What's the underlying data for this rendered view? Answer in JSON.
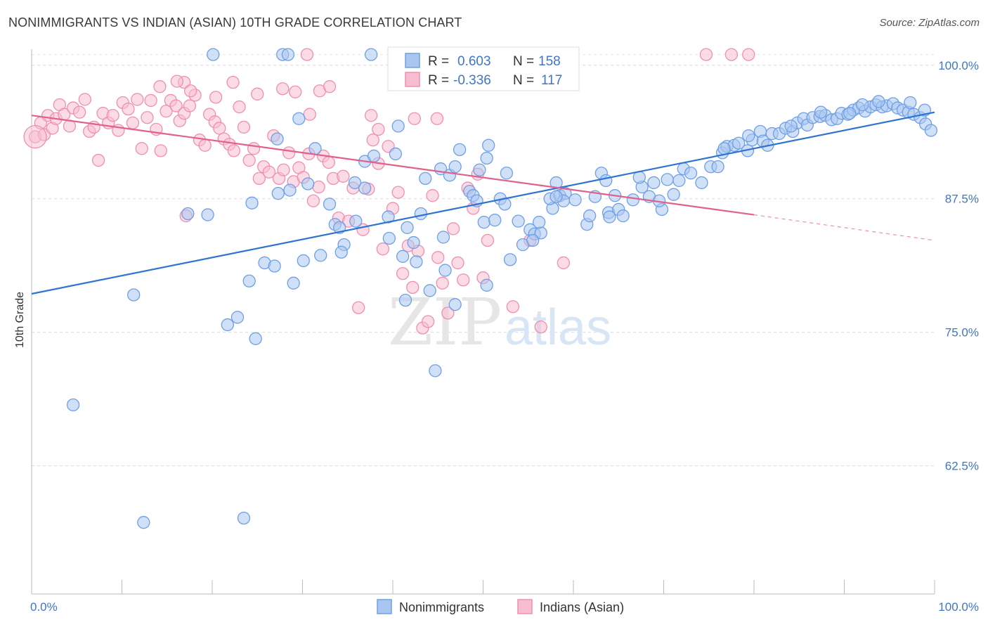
{
  "title": "NONIMMIGRANTS VS INDIAN (ASIAN) 10TH GRADE CORRELATION CHART",
  "source": "Source: ZipAtlas.com",
  "watermark": {
    "zip": "ZIP",
    "atlas": "atlas"
  },
  "chart_data": {
    "type": "scatter",
    "ylabel": "10th Grade",
    "xlim": [
      0,
      100
    ],
    "ylim": [
      50.5,
      101.5
    ],
    "x_tick_labels": [
      "0.0%",
      "100.0%"
    ],
    "y_ticks": [
      62.5,
      75.0,
      87.5,
      100.0
    ],
    "y_tick_labels": [
      "62.5%",
      "75.0%",
      "87.5%",
      "100.0%"
    ],
    "grid": true,
    "legend_position": "top-center",
    "series": [
      {
        "name": "Nonimmigrants",
        "color": "#6f9fe6",
        "fill": "#a9c6f0",
        "line_color": "#2e74d0",
        "R": "0.603",
        "N": "158",
        "trend": {
          "x": [
            0,
            100
          ],
          "y": [
            78.6,
            95.6
          ]
        },
        "points": [
          [
            11.3,
            78.5
          ],
          [
            4.6,
            68.2
          ],
          [
            12.4,
            57.2
          ],
          [
            23.5,
            57.6
          ],
          [
            21.7,
            75.7
          ],
          [
            22.8,
            76.4
          ],
          [
            24.1,
            79.8
          ],
          [
            24.8,
            74.4
          ],
          [
            25.8,
            81.5
          ],
          [
            26.9,
            81.2
          ],
          [
            27.3,
            88
          ],
          [
            29,
            79.6
          ],
          [
            30.1,
            81.7
          ],
          [
            29.6,
            95
          ],
          [
            27.2,
            93.1
          ],
          [
            24.4,
            87.1
          ],
          [
            19.5,
            86.0
          ],
          [
            17.3,
            86.1
          ],
          [
            28.6,
            88.3
          ],
          [
            30.6,
            88.9
          ],
          [
            31.4,
            92.2
          ],
          [
            33,
            87
          ],
          [
            33.6,
            85.1
          ],
          [
            34.6,
            83.2
          ],
          [
            34.3,
            82.5
          ],
          [
            35.9,
            85.4
          ],
          [
            35.8,
            89.0
          ],
          [
            36.9,
            91.0
          ],
          [
            37.9,
            91.5
          ],
          [
            39.6,
            83.8
          ],
          [
            39.5,
            85.8
          ],
          [
            40.3,
            91.7
          ],
          [
            40.6,
            94.3
          ],
          [
            41.1,
            82.1
          ],
          [
            41.4,
            78
          ],
          [
            42.6,
            81.6
          ],
          [
            41.6,
            84.8
          ],
          [
            43.1,
            86.1
          ],
          [
            43.6,
            89.4
          ],
          [
            44.1,
            78.9
          ],
          [
            44.7,
            71.4
          ],
          [
            45.3,
            90.3
          ],
          [
            45.6,
            83.9
          ],
          [
            45.8,
            80.8
          ],
          [
            46.3,
            89.7
          ],
          [
            46.9,
            77.6
          ],
          [
            46.9,
            90.5
          ],
          [
            47.4,
            92.1
          ],
          [
            48.5,
            88.2
          ],
          [
            48.9,
            87.8
          ],
          [
            49.3,
            87.3
          ],
          [
            49.6,
            90.2
          ],
          [
            50.4,
            91.3
          ],
          [
            50.6,
            92.5
          ],
          [
            50.1,
            85.3
          ],
          [
            51.3,
            85.5
          ],
          [
            51.9,
            87.5
          ],
          [
            52.4,
            87.0
          ],
          [
            52.6,
            89.9
          ],
          [
            53.9,
            85.4
          ],
          [
            54.4,
            83.2
          ],
          [
            55.2,
            84.6
          ],
          [
            55.7,
            84.2
          ],
          [
            56.4,
            84.3
          ],
          [
            56.2,
            85.3
          ],
          [
            57.7,
            86.6
          ],
          [
            57.4,
            87.5
          ],
          [
            58.5,
            87.8
          ],
          [
            59.1,
            88.0
          ],
          [
            58.1,
            89.0
          ],
          [
            58.9,
            87.3
          ],
          [
            60.2,
            87.4
          ],
          [
            61.5,
            85.1
          ],
          [
            62.4,
            87.7
          ],
          [
            63.1,
            89.9
          ],
          [
            63.6,
            89.2
          ],
          [
            63.9,
            86.2
          ],
          [
            64.6,
            87.8
          ],
          [
            65.0,
            86.5
          ],
          [
            65.5,
            85.9
          ],
          [
            66.6,
            87.4
          ],
          [
            67.6,
            88.6
          ],
          [
            68.4,
            87.7
          ],
          [
            67.3,
            89.5
          ],
          [
            68.9,
            89.0
          ],
          [
            69.8,
            86.5
          ],
          [
            70.4,
            89.3
          ],
          [
            71.7,
            89.2
          ],
          [
            72.2,
            90.3
          ],
          [
            73.0,
            89.9
          ],
          [
            74.2,
            89.0
          ],
          [
            75.2,
            90.5
          ],
          [
            76.0,
            90.5
          ],
          [
            76.5,
            91.8
          ],
          [
            77.0,
            92.4
          ],
          [
            77.8,
            92.5
          ],
          [
            78.3,
            92.7
          ],
          [
            79.3,
            92.0
          ],
          [
            79.8,
            93.0
          ],
          [
            80.7,
            93.8
          ],
          [
            81.0,
            92.9
          ],
          [
            81.5,
            92.5
          ],
          [
            82.0,
            93.6
          ],
          [
            82.8,
            93.6
          ],
          [
            83.5,
            94.1
          ],
          [
            84.3,
            93.8
          ],
          [
            84.8,
            94.6
          ],
          [
            85.5,
            95.0
          ],
          [
            85.9,
            94.4
          ],
          [
            86.5,
            95.1
          ],
          [
            87.3,
            95.2
          ],
          [
            87.9,
            95.3
          ],
          [
            88.6,
            94.9
          ],
          [
            89.2,
            95.0
          ],
          [
            89.7,
            95.5
          ],
          [
            90.4,
            95.4
          ],
          [
            91.0,
            95.8
          ],
          [
            91.6,
            96.0
          ],
          [
            92.3,
            95.7
          ],
          [
            92.9,
            96.1
          ],
          [
            93.5,
            96.3
          ],
          [
            94.2,
            96.1
          ],
          [
            94.7,
            96.2
          ],
          [
            95.4,
            96.4
          ],
          [
            95.9,
            96.0
          ],
          [
            96.5,
            95.8
          ],
          [
            97.1,
            95.6
          ],
          [
            97.7,
            95.4
          ],
          [
            98.4,
            95.1
          ],
          [
            99.0,
            94.5
          ],
          [
            99.6,
            93.9
          ],
          [
            98.9,
            95.8
          ],
          [
            97.3,
            96.5
          ],
          [
            93.8,
            96.6
          ],
          [
            92.0,
            96.3
          ],
          [
            90.6,
            95.5
          ],
          [
            87.4,
            95.6
          ],
          [
            84.1,
            94.3
          ],
          [
            79.4,
            93.4
          ],
          [
            76.7,
            92.2
          ],
          [
            71.1,
            87.9
          ],
          [
            69.5,
            87.3
          ],
          [
            64.0,
            85.8
          ],
          [
            61.8,
            85.9
          ],
          [
            58.1,
            87.7
          ],
          [
            55.5,
            83.6
          ],
          [
            53.0,
            81.8
          ],
          [
            50.4,
            79.4
          ],
          [
            42.3,
            83.4
          ],
          [
            36.9,
            88.5
          ],
          [
            34.1,
            84.8
          ],
          [
            32.0,
            82.2
          ],
          [
            20.1,
            101.0
          ],
          [
            27.8,
            101.0
          ],
          [
            28.4,
            101.0
          ],
          [
            37.6,
            101.0
          ]
        ]
      },
      {
        "name": "Indians (Asian)",
        "color": "#f08fb0",
        "fill": "#f7bdd1",
        "line_color": "#e0608e",
        "R": "-0.336",
        "N": "117",
        "trend": {
          "x": [
            0,
            80
          ],
          "y": [
            95.3,
            86.0
          ]
        },
        "trend_dashed": {
          "x": [
            80,
            100
          ],
          "y": [
            86.0,
            83.6
          ]
        },
        "points": [
          [
            0.4,
            93.3
          ],
          [
            1.0,
            94.6
          ],
          [
            1.4,
            93.5
          ],
          [
            1.8,
            95.3
          ],
          [
            2.3,
            94.1
          ],
          [
            2.7,
            95.0
          ],
          [
            3.1,
            96.3
          ],
          [
            3.6,
            95.4
          ],
          [
            4.2,
            94.3
          ],
          [
            4.6,
            96.0
          ],
          [
            5.3,
            95.6
          ],
          [
            5.9,
            96.8
          ],
          [
            6.4,
            93.8
          ],
          [
            6.9,
            94.2
          ],
          [
            7.4,
            91.1
          ],
          [
            7.9,
            95.5
          ],
          [
            8.5,
            94.6
          ],
          [
            9.0,
            95.3
          ],
          [
            9.6,
            93.9
          ],
          [
            10.1,
            96.5
          ],
          [
            10.7,
            95.9
          ],
          [
            11.2,
            94.6
          ],
          [
            11.7,
            96.8
          ],
          [
            12.2,
            92.2
          ],
          [
            12.8,
            95.1
          ],
          [
            13.2,
            96.7
          ],
          [
            13.8,
            94.0
          ],
          [
            14.3,
            92.0
          ],
          [
            14.9,
            95.7
          ],
          [
            15.4,
            96.7
          ],
          [
            16.0,
            96.2
          ],
          [
            16.4,
            94.8
          ],
          [
            16.9,
            95.5
          ],
          [
            17.5,
            96.2
          ],
          [
            18.1,
            97.2
          ],
          [
            18.6,
            93.0
          ],
          [
            19.2,
            92.5
          ],
          [
            19.7,
            95.4
          ],
          [
            20.3,
            94.7
          ],
          [
            20.8,
            94.1
          ],
          [
            21.3,
            93.1
          ],
          [
            21.9,
            92.6
          ],
          [
            22.4,
            92.0
          ],
          [
            23.0,
            96.1
          ],
          [
            23.5,
            94.2
          ],
          [
            24.1,
            91.1
          ],
          [
            24.6,
            92.2
          ],
          [
            25.2,
            89.4
          ],
          [
            25.7,
            90.5
          ],
          [
            26.3,
            90.0
          ],
          [
            26.8,
            93.4
          ],
          [
            27.4,
            89.4
          ],
          [
            27.9,
            90.2
          ],
          [
            28.5,
            91.8
          ],
          [
            29.0,
            89.1
          ],
          [
            29.6,
            90.4
          ],
          [
            30.1,
            89.5
          ],
          [
            30.7,
            91.7
          ],
          [
            31.2,
            87.3
          ],
          [
            31.8,
            88.6
          ],
          [
            32.3,
            91.5
          ],
          [
            32.9,
            90.9
          ],
          [
            33.4,
            89.4
          ],
          [
            34.0,
            85.7
          ],
          [
            34.5,
            89.6
          ],
          [
            35.1,
            85.4
          ],
          [
            35.6,
            88.5
          ],
          [
            36.2,
            77.3
          ],
          [
            36.7,
            84.6
          ],
          [
            37.3,
            88.4
          ],
          [
            37.8,
            93.0
          ],
          [
            38.4,
            90.8
          ],
          [
            38.9,
            82.8
          ],
          [
            39.5,
            92.4
          ],
          [
            40.0,
            86.6
          ],
          [
            40.6,
            88.1
          ],
          [
            41.1,
            80.5
          ],
          [
            41.7,
            83.1
          ],
          [
            42.2,
            79.2
          ],
          [
            42.8,
            82.6
          ],
          [
            43.3,
            75.4
          ],
          [
            43.9,
            76.0
          ],
          [
            44.4,
            87.8
          ],
          [
            45.0,
            82.0
          ],
          [
            45.5,
            79.6
          ],
          [
            46.1,
            76.8
          ],
          [
            46.7,
            84.7
          ],
          [
            47.2,
            81.5
          ],
          [
            47.8,
            79.9
          ],
          [
            48.3,
            88.5
          ],
          [
            48.9,
            86.6
          ],
          [
            49.4,
            89.8
          ],
          [
            50.0,
            80.1
          ],
          [
            50.5,
            83.6
          ],
          [
            53.3,
            77.4
          ],
          [
            55.2,
            83.6
          ],
          [
            56.4,
            75.5
          ],
          [
            58.9,
            81.5
          ],
          [
            17.1,
            85.9
          ],
          [
            16.9,
            98.4
          ],
          [
            14.2,
            98.0
          ],
          [
            16.1,
            98.5
          ],
          [
            17.6,
            97.6
          ],
          [
            20.4,
            97.0
          ],
          [
            22.3,
            98.4
          ],
          [
            25.0,
            97.3
          ],
          [
            27.8,
            97.8
          ],
          [
            29.2,
            97.5
          ],
          [
            30.8,
            95.4
          ],
          [
            31.9,
            97.6
          ],
          [
            33.0,
            98.0
          ],
          [
            37.6,
            95.3
          ],
          [
            38.4,
            94.0
          ],
          [
            42.4,
            95.0
          ],
          [
            44.9,
            95.0
          ],
          [
            46.4,
            101.0
          ],
          [
            74.7,
            101.0
          ],
          [
            77.5,
            101.0
          ],
          [
            79.4,
            101.0
          ],
          [
            30.5,
            101.0
          ]
        ]
      }
    ]
  },
  "legend": {
    "r_label": "R =",
    "n_label": "N =",
    "r_values": [
      "0.603",
      "-0.336"
    ],
    "n_values": [
      "158",
      "117"
    ],
    "items": [
      "Nonimmigrants",
      "Indians (Asian)"
    ]
  }
}
